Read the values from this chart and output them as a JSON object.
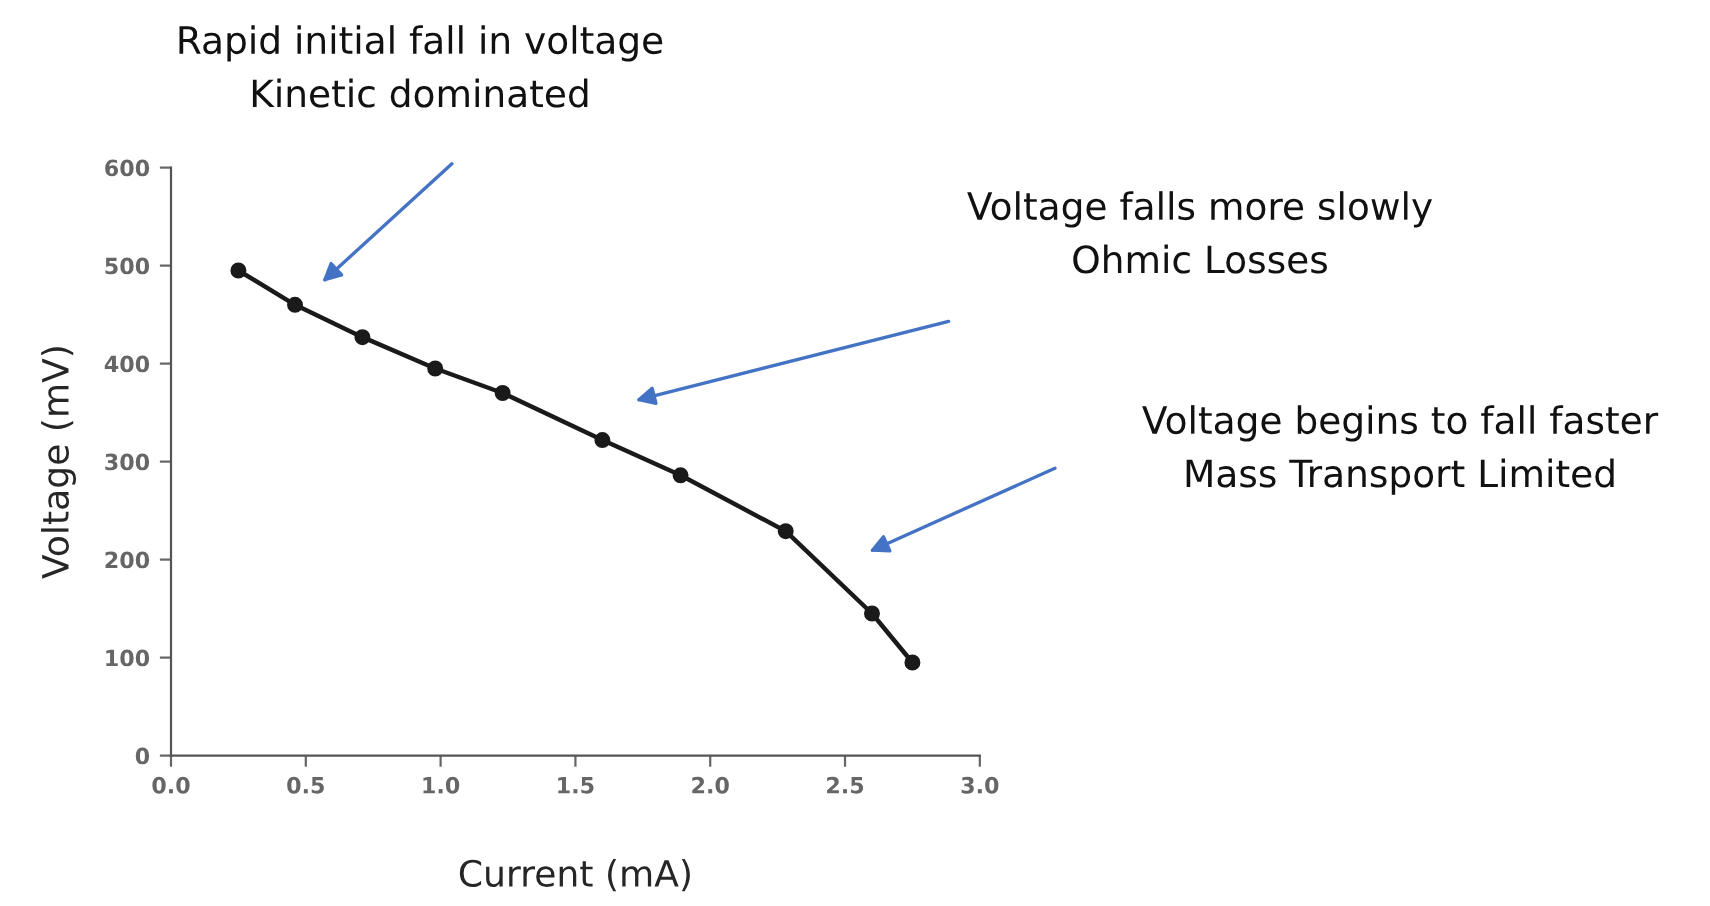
{
  "chart_data": {
    "type": "line",
    "xlabel": "Current (mA)",
    "ylabel": "Voltage (mV)",
    "x": [
      0.25,
      0.46,
      0.71,
      0.98,
      1.23,
      1.6,
      1.89,
      2.28,
      2.6,
      2.75
    ],
    "series": [
      {
        "color": "#1a1a1a",
        "values": [
          495,
          460,
          427,
          395,
          370,
          322,
          286,
          229,
          145,
          95
        ]
      }
    ],
    "xlim": [
      0,
      3
    ],
    "ylim": [
      0,
      600
    ],
    "xticks": [
      {
        "value": 0,
        "label": "0.0"
      },
      {
        "value": 0.5,
        "label": "0.5"
      },
      {
        "value": 1,
        "label": "1.0"
      },
      {
        "value": 1.5,
        "label": "1.5"
      },
      {
        "value": 2,
        "label": "2.0"
      },
      {
        "value": 2.5,
        "label": "2.5"
      },
      {
        "value": 3,
        "label": "3.0"
      }
    ],
    "yticks": [
      0,
      100,
      200,
      300,
      400,
      500,
      600
    ],
    "marker": "circle",
    "line_style": "solid",
    "grid": false,
    "legend": false,
    "annotations": [
      "Rapid initial fall in voltage\nKinetic dominated",
      "Voltage falls more slowly\nOhmic Losses",
      "Voltage begins to fall faster\nMass Transport Limited"
    ]
  }
}
